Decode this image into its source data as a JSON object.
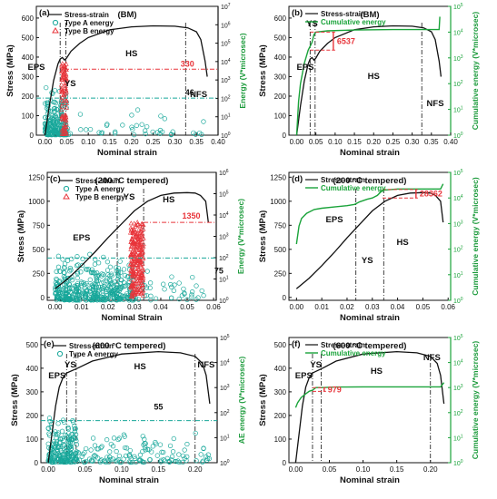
{
  "colors": {
    "stress": "#111111",
    "typeA": "#17a79a",
    "typeB": "#e8343a",
    "energy": "#1aa33a",
    "guide_red": "#e8343a",
    "guide_teal": "#17a79a",
    "axis_right": "#1a9a3a"
  },
  "chart_data": [
    {
      "id": "a",
      "panel_label": "(a)",
      "type": "scatter",
      "title": "(BM)",
      "xlabel": "Nominal strain",
      "ylabel": "Stress (MPa)",
      "ylabel_right": "Energy (V*microsec)",
      "xlim": [
        -0.02,
        0.4
      ],
      "ylim": [
        0,
        660
      ],
      "yticks": [
        0,
        100,
        200,
        300,
        400,
        500,
        600
      ],
      "xticks": [
        0.0,
        0.05,
        0.1,
        0.15,
        0.2,
        0.25,
        0.3,
        0.35,
        0.4
      ],
      "xticklabels": [
        "0.00",
        "0.05",
        "0.10",
        "0.15",
        "0.20",
        "0.25",
        "0.30",
        "0.35",
        "0.40"
      ],
      "yright": {
        "log": true,
        "min_exp": 0,
        "max_exp": 7,
        "ticklabels": [
          "10^0",
          "10^1",
          "10^2",
          "10^3",
          "10^4",
          "10^5",
          "10^6",
          "10^7"
        ]
      },
      "legend": [
        "Stress-strain",
        "Type A energy",
        "Type B energy"
      ],
      "legend_position": "top-left",
      "regions": [
        "EPS",
        "YS",
        "HS",
        "NFS"
      ],
      "annotations": {
        "red_value": "330",
        "teal_value": "46"
      },
      "curve": {
        "x": [
          0,
          0.01,
          0.02,
          0.03,
          0.035,
          0.04,
          0.045,
          0.05,
          0.06,
          0.08,
          0.1,
          0.15,
          0.2,
          0.25,
          0.3,
          0.33,
          0.35,
          0.36,
          0.37,
          0.375
        ],
        "y": [
          0,
          150,
          280,
          365,
          390,
          398,
          385,
          395,
          430,
          470,
          500,
          540,
          555,
          560,
          558,
          550,
          530,
          490,
          380,
          300
        ]
      },
      "typeA": {
        "note": "clusters 0.00-0.05, scattered to 0.37",
        "energy_guide_exp": 2.6
      },
      "typeB": {
        "note": "concentrated at 0.04-0.05",
        "energy_guide_exp": 3.2
      },
      "vlines": [
        0.035,
        0.048,
        0.325
      ]
    },
    {
      "id": "b",
      "panel_label": "(b)",
      "type": "line",
      "title": "(BM)",
      "xlabel": "Nominal strain",
      "ylabel": "Stress (MPa)",
      "ylabel_right": "Cumulative energy (V*microsec)",
      "xlim": [
        -0.02,
        0.4
      ],
      "ylim": [
        0,
        660
      ],
      "yticks": [
        0,
        100,
        200,
        300,
        400,
        500,
        600
      ],
      "xticks": [
        0.0,
        0.05,
        0.1,
        0.15,
        0.2,
        0.25,
        0.3,
        0.35,
        0.4
      ],
      "xticklabels": [
        "0.00",
        "0.05",
        "0.10",
        "0.15",
        "0.20",
        "0.25",
        "0.30",
        "0.35",
        "0.40"
      ],
      "yright": {
        "log": true,
        "min_exp": 0,
        "max_exp": 5,
        "ticklabels": [
          "10^0",
          "10^1",
          "10^2",
          "10^3",
          "10^4",
          "10^5"
        ]
      },
      "legend": [
        "Stress-strain",
        "Cumulative energy"
      ],
      "legend_position": "top-left",
      "regions": [
        "EPS",
        "YS",
        "HS",
        "NFS"
      ],
      "annotations": {
        "red_value": "6537"
      },
      "curve": {
        "x": [
          0,
          0.01,
          0.02,
          0.03,
          0.035,
          0.04,
          0.045,
          0.05,
          0.06,
          0.08,
          0.1,
          0.15,
          0.2,
          0.25,
          0.3,
          0.33,
          0.35,
          0.36,
          0.37,
          0.375
        ],
        "y": [
          0,
          150,
          280,
          365,
          390,
          398,
          385,
          395,
          430,
          470,
          500,
          540,
          555,
          560,
          558,
          550,
          530,
          490,
          380,
          300
        ]
      },
      "energy": {
        "x": [
          0,
          0.005,
          0.01,
          0.02,
          0.03,
          0.04,
          0.045,
          0.05,
          0.08,
          0.15,
          0.25,
          0.35,
          0.37,
          0.372
        ],
        "y_exp": [
          0,
          1.3,
          2,
          2.8,
          3.3,
          3.6,
          3.9,
          4.0,
          4.05,
          4.08,
          4.1,
          4.1,
          4.1,
          4.6
        ]
      },
      "vlines": [
        0.035,
        0.048,
        0.325
      ]
    },
    {
      "id": "c",
      "panel_label": "(c)",
      "type": "scatter",
      "title": "(200 °C tempered)",
      "xlabel": "Nominal Strain",
      "ylabel": "Stress (MPa)",
      "ylabel_right": "Energy (V*microsec)",
      "xlim": [
        -0.003,
        0.061
      ],
      "ylim": [
        -30,
        1300
      ],
      "yticks": [
        0,
        250,
        500,
        750,
        1000,
        1250
      ],
      "xticks": [
        0.0,
        0.01,
        0.02,
        0.03,
        0.04,
        0.05,
        0.06
      ],
      "xticklabels": [
        "0.00",
        "0.01",
        "0.02",
        "0.03",
        "0.04",
        "0.05",
        "0.06"
      ],
      "yright": {
        "log": true,
        "min_exp": 0,
        "max_exp": 6,
        "ticklabels": [
          "10^0",
          "10^1",
          "10^2",
          "10^3",
          "10^4",
          "10^5",
          "10^6"
        ]
      },
      "legend": [
        "Stress-strain",
        "Type A energy",
        "Type B energy"
      ],
      "legend_position": "top-left",
      "regions": [
        "EPS",
        "YS",
        "HS"
      ],
      "annotations": {
        "red_value": "1350",
        "teal_value": "75"
      },
      "curve": {
        "x": [
          0,
          0.005,
          0.01,
          0.015,
          0.02,
          0.025,
          0.03,
          0.035,
          0.04,
          0.045,
          0.05,
          0.053,
          0.055,
          0.057,
          0.058
        ],
        "y": [
          90,
          200,
          330,
          470,
          620,
          760,
          900,
          1000,
          1060,
          1085,
          1090,
          1085,
          1060,
          1000,
          780
        ]
      },
      "vlines": [
        0.0235,
        0.0335
      ]
    },
    {
      "id": "d",
      "panel_label": "(d)",
      "type": "line",
      "title": "(200 °C tempered)",
      "xlabel": "Nominal strain",
      "ylabel": "Stress (MPa)",
      "ylabel_right": "Cumulative energy (V*microsec)",
      "xlim": [
        -0.003,
        0.061
      ],
      "ylim": [
        -30,
        1300
      ],
      "yticks": [
        0,
        250,
        500,
        750,
        1000,
        1250
      ],
      "xticks": [
        0.0,
        0.01,
        0.02,
        0.03,
        0.04,
        0.05,
        0.06
      ],
      "xticklabels": [
        "0.00",
        "0.01",
        "0.02",
        "0.03",
        "0.04",
        "0.05",
        "0.06"
      ],
      "yright": {
        "log": true,
        "min_exp": 0,
        "max_exp": 5,
        "ticklabels": [
          "10^0",
          "10^1",
          "10^2",
          "10^3",
          "10^4",
          "10^5"
        ]
      },
      "legend": [
        "Stress-strain",
        "Cumulative energy"
      ],
      "legend_position": "top-left",
      "regions": [
        "EPS",
        "YS",
        "HS"
      ],
      "annotations": {
        "red_value": "28362"
      },
      "curve": {
        "x": [
          0,
          0.005,
          0.01,
          0.015,
          0.02,
          0.025,
          0.03,
          0.035,
          0.04,
          0.045,
          0.05,
          0.053,
          0.055,
          0.057,
          0.058
        ],
        "y": [
          90,
          200,
          330,
          470,
          620,
          760,
          900,
          1000,
          1060,
          1085,
          1090,
          1085,
          1060,
          1000,
          780
        ]
      },
      "energy": {
        "x": [
          0,
          0.001,
          0.002,
          0.004,
          0.007,
          0.01,
          0.015,
          0.02,
          0.023,
          0.025,
          0.028,
          0.03,
          0.032,
          0.034,
          0.04,
          0.05,
          0.057,
          0.058
        ],
        "y_exp": [
          2.2,
          2.9,
          3.2,
          3.4,
          3.55,
          3.6,
          3.65,
          3.7,
          3.75,
          3.85,
          3.95,
          4.0,
          4.1,
          4.3,
          4.35,
          4.35,
          4.35,
          4.55
        ]
      },
      "vlines": [
        0.0235,
        0.0345
      ]
    },
    {
      "id": "e",
      "panel_label": "(e)",
      "type": "scatter",
      "title": "(600 °C tempered)",
      "xlabel": "Nominal strain",
      "ylabel": "Stress (MPa)",
      "ylabel_right": "AE energy (V*microsec)",
      "xlim": [
        -0.01,
        0.23
      ],
      "ylim": [
        0,
        530
      ],
      "yticks": [
        0,
        100,
        200,
        300,
        400,
        500
      ],
      "xticks": [
        0.0,
        0.05,
        0.1,
        0.15,
        0.2
      ],
      "xticklabels": [
        "0.00",
        "0.05",
        "0.10",
        "0.15",
        "0.20"
      ],
      "yright": {
        "log": true,
        "min_exp": 0,
        "max_exp": 5,
        "ticklabels": [
          "10^0",
          "10^1",
          "10^2",
          "10^3",
          "10^4",
          "10^5"
        ]
      },
      "legend": [
        "Stress-strain",
        "Type A energy"
      ],
      "legend_position": "top-left",
      "regions": [
        "EPS",
        "YS",
        "HS",
        "NFS"
      ],
      "annotations": {
        "teal_value": "55"
      },
      "curve": {
        "x": [
          0,
          0.005,
          0.01,
          0.015,
          0.02,
          0.025,
          0.04,
          0.06,
          0.1,
          0.15,
          0.18,
          0.2,
          0.21,
          0.215,
          0.22
        ],
        "y": [
          0,
          120,
          240,
          320,
          360,
          380,
          400,
          430,
          460,
          470,
          465,
          450,
          420,
          370,
          250
        ]
      },
      "vlines": [
        0.025,
        0.038,
        0.2
      ]
    },
    {
      "id": "f",
      "panel_label": "(f)",
      "type": "line",
      "title": "(600 °C tempered)",
      "xlabel": "Nominal strain",
      "ylabel": "Stress (MPa)",
      "ylabel_right": "Cumulative energy (V*microsec)",
      "xlim": [
        -0.01,
        0.23
      ],
      "ylim": [
        0,
        530
      ],
      "yticks": [
        0,
        100,
        200,
        300,
        400,
        500
      ],
      "xticks": [
        0.0,
        0.05,
        0.1,
        0.15,
        0.2
      ],
      "xticklabels": [
        "0.00",
        "0.05",
        "0.10",
        "0.15",
        "0.20"
      ],
      "yright": {
        "log": true,
        "min_exp": 0,
        "max_exp": 5,
        "ticklabels": [
          "10^0",
          "10^1",
          "10^2",
          "10^3",
          "10^4",
          "10^5"
        ]
      },
      "legend": [
        "Stress-strain",
        "Cumulative energy"
      ],
      "legend_position": "top-left",
      "regions": [
        "EPS",
        "YS",
        "HS",
        "NFS"
      ],
      "annotations": {
        "red_value": "979"
      },
      "curve": {
        "x": [
          0,
          0.005,
          0.01,
          0.015,
          0.02,
          0.025,
          0.04,
          0.06,
          0.1,
          0.15,
          0.18,
          0.2,
          0.21,
          0.215,
          0.22
        ],
        "y": [
          0,
          120,
          240,
          320,
          360,
          380,
          400,
          430,
          460,
          470,
          465,
          450,
          420,
          370,
          250
        ]
      },
      "energy": {
        "x": [
          0,
          0.003,
          0.008,
          0.015,
          0.02,
          0.025,
          0.03,
          0.04,
          0.06,
          0.1,
          0.15,
          0.2,
          0.215,
          0.22
        ],
        "y_exp": [
          2.2,
          2.4,
          2.6,
          2.75,
          2.85,
          2.9,
          3.0,
          3.0,
          3.02,
          3.03,
          3.03,
          3.03,
          3.03,
          3.2
        ]
      },
      "vlines": [
        0.025,
        0.038,
        0.2
      ]
    }
  ]
}
